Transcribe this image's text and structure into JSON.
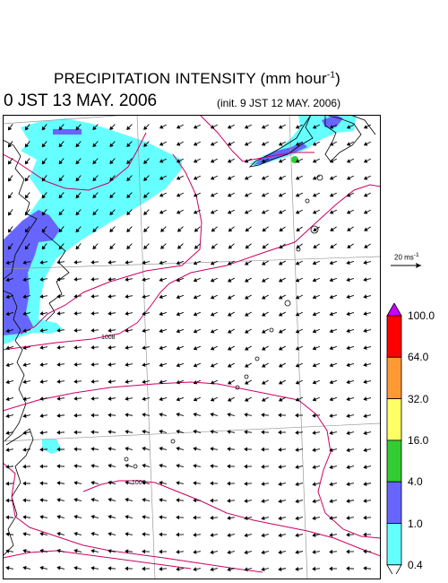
{
  "title": {
    "main": "PRECIPITATION INTENSITY (mm hour",
    "sup": "-1",
    "close": ")"
  },
  "valid_time": "0 JST 13 MAY. 2006",
  "init_time": "(init. 9 JST 12 MAY. 2006)",
  "vector_scale": {
    "label": "20 ms",
    "sup": "-1"
  },
  "isobars": {
    "label_1008": "1008",
    "label_1006": "1006"
  },
  "colorbar": {
    "labels": [
      "100.0",
      "64.0",
      "32.0",
      "16.0",
      "4.0",
      "1.0",
      "0.4"
    ],
    "colors": [
      "#ff0000",
      "#ff9933",
      "#ffff66",
      "#33cc33",
      "#6666ff",
      "#66ffff"
    ],
    "over_color": "#cc00ff",
    "under_color": "#ffffff"
  },
  "colors": {
    "rain_light": "#66ffff",
    "rain_moderate": "#6666ff",
    "rain_heavy": "#33cc33",
    "isobar": "#cc0066",
    "grid": "#999999",
    "coast": "#000000"
  }
}
